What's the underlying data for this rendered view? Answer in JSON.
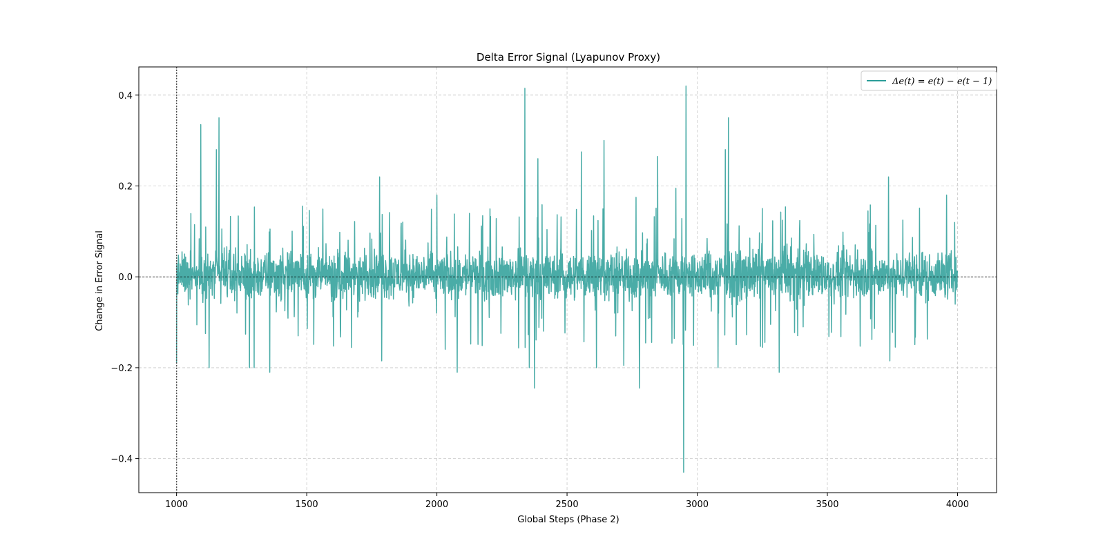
{
  "chart_data": {
    "type": "line",
    "title": "Delta Error Signal (Lyapunov Proxy)",
    "xlabel": "Global Steps (Phase 2)",
    "ylabel": "Change in Error Signal",
    "xlim": [
      855,
      4150
    ],
    "ylim": [
      -0.475,
      0.462
    ],
    "xticks": [
      1000,
      1500,
      2000,
      2500,
      3000,
      3500,
      4000
    ],
    "xtick_labels": [
      "1000",
      "1500",
      "2000",
      "2500",
      "3000",
      "3500",
      "4000"
    ],
    "yticks": [
      -0.4,
      -0.2,
      0.0,
      0.2,
      0.4
    ],
    "ytick_labels": [
      "−0.4",
      "−0.2",
      "0.0",
      "0.2",
      "0.4"
    ],
    "grid": true,
    "legend_position": "top-right",
    "reference_lines": [
      {
        "orientation": "horizontal",
        "value": 0.0,
        "style": "dashed",
        "color": "#000000"
      },
      {
        "orientation": "vertical",
        "value": 1000,
        "style": "dotted",
        "color": "#555555"
      }
    ],
    "series": [
      {
        "name": "Δe(t) = e(t) − e(t − 1)",
        "color": "#2a9d98",
        "x_start": 1000,
        "x_end": 4000,
        "peaks": [
          {
            "x": 1000,
            "y": -0.19
          },
          {
            "x": 1093,
            "y": 0.335
          },
          {
            "x": 1125,
            "y": -0.2
          },
          {
            "x": 1153,
            "y": 0.28
          },
          {
            "x": 1163,
            "y": 0.35
          },
          {
            "x": 1280,
            "y": -0.2
          },
          {
            "x": 1298,
            "y": -0.2
          },
          {
            "x": 1358,
            "y": -0.21
          },
          {
            "x": 1780,
            "y": 0.22
          },
          {
            "x": 1788,
            "y": -0.185
          },
          {
            "x": 2000,
            "y": 0.18
          },
          {
            "x": 2078,
            "y": -0.21
          },
          {
            "x": 2338,
            "y": 0.415
          },
          {
            "x": 2355,
            "y": -0.2
          },
          {
            "x": 2375,
            "y": -0.245
          },
          {
            "x": 2388,
            "y": 0.26
          },
          {
            "x": 2555,
            "y": 0.275
          },
          {
            "x": 2613,
            "y": -0.2
          },
          {
            "x": 2642,
            "y": 0.3
          },
          {
            "x": 2718,
            "y": -0.195
          },
          {
            "x": 2765,
            "y": 0.175
          },
          {
            "x": 2778,
            "y": -0.245
          },
          {
            "x": 2848,
            "y": 0.265
          },
          {
            "x": 2918,
            "y": 0.195
          },
          {
            "x": 2948,
            "y": -0.43
          },
          {
            "x": 2957,
            "y": 0.42
          },
          {
            "x": 3080,
            "y": -0.2
          },
          {
            "x": 3108,
            "y": 0.28
          },
          {
            "x": 3120,
            "y": 0.35
          },
          {
            "x": 3315,
            "y": -0.21
          },
          {
            "x": 3735,
            "y": 0.22
          },
          {
            "x": 3740,
            "y": -0.185
          },
          {
            "x": 3958,
            "y": 0.18
          }
        ]
      }
    ]
  }
}
